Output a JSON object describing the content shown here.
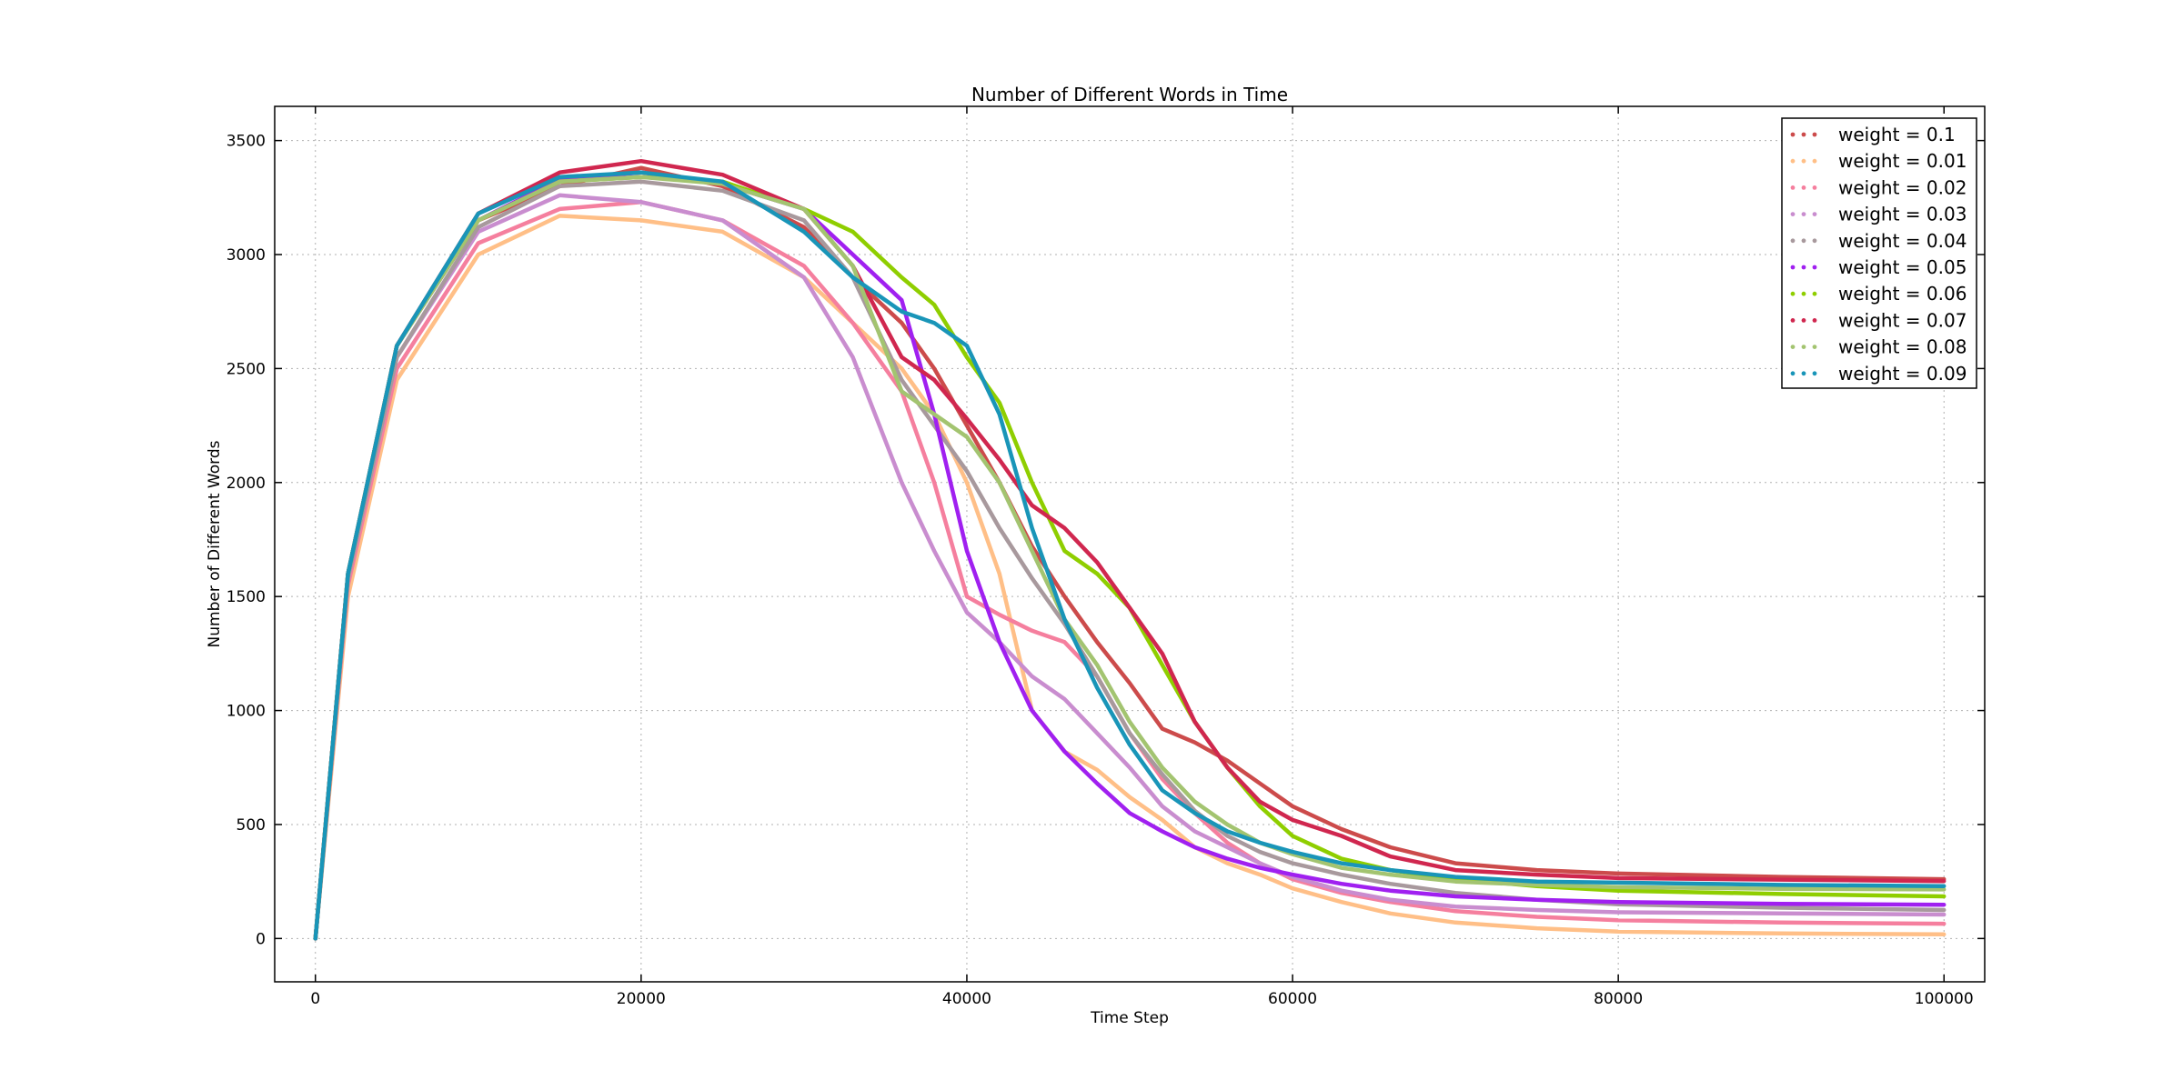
{
  "chart_data": {
    "type": "line",
    "title": "Number of Different Words in Time",
    "xlabel": "Time Step",
    "ylabel": "Number of Different Words",
    "xlim": [
      -2500,
      102500
    ],
    "ylim": [
      -190,
      3650
    ],
    "xticks": [
      0,
      20000,
      40000,
      60000,
      80000,
      100000
    ],
    "yticks": [
      0,
      500,
      1000,
      1500,
      2000,
      2500,
      3000,
      3500
    ],
    "xtick_labels": [
      "0",
      "20000",
      "40000",
      "60000",
      "80000",
      "100000"
    ],
    "ytick_labels": [
      "0",
      "500",
      "1000",
      "1500",
      "2000",
      "2500",
      "3000",
      "3500"
    ],
    "grid": true,
    "legend_position": "top-right",
    "x": [
      0,
      2000,
      5000,
      10000,
      15000,
      20000,
      25000,
      30000,
      33000,
      36000,
      38000,
      40000,
      42000,
      44000,
      46000,
      48000,
      50000,
      52000,
      54000,
      56000,
      58000,
      60000,
      63000,
      66000,
      70000,
      75000,
      80000,
      90000,
      100000
    ],
    "series": [
      {
        "name": "weight = 0.1",
        "color": "#cc4b4b",
        "values": [
          0,
          1600,
          2600,
          3150,
          3300,
          3380,
          3300,
          3120,
          2900,
          2700,
          2500,
          2250,
          2000,
          1720,
          1500,
          1300,
          1120,
          920,
          860,
          780,
          680,
          580,
          480,
          400,
          330,
          300,
          285,
          270,
          260
        ]
      },
      {
        "name": "weight = 0.01",
        "color": "#ffbf87",
        "values": [
          0,
          1500,
          2450,
          3000,
          3170,
          3150,
          3100,
          2900,
          2700,
          2500,
          2300,
          2000,
          1600,
          1000,
          820,
          740,
          620,
          520,
          400,
          330,
          280,
          220,
          160,
          110,
          70,
          45,
          30,
          22,
          18
        ]
      },
      {
        "name": "weight = 0.02",
        "color": "#f57f9e",
        "values": [
          0,
          1550,
          2500,
          3050,
          3200,
          3230,
          3150,
          2950,
          2700,
          2400,
          2000,
          1500,
          1420,
          1350,
          1300,
          1150,
          900,
          700,
          550,
          420,
          330,
          260,
          200,
          160,
          120,
          95,
          80,
          70,
          65
        ]
      },
      {
        "name": "weight = 0.03",
        "color": "#c98dcf",
        "values": [
          0,
          1580,
          2550,
          3100,
          3260,
          3230,
          3150,
          2900,
          2550,
          2000,
          1700,
          1430,
          1300,
          1150,
          1050,
          900,
          750,
          580,
          470,
          400,
          330,
          270,
          210,
          170,
          140,
          125,
          115,
          110,
          105
        ]
      },
      {
        "name": "weight = 0.04",
        "color": "#a8999d",
        "values": [
          0,
          1580,
          2550,
          3120,
          3300,
          3320,
          3280,
          3150,
          2900,
          2450,
          2250,
          2050,
          1800,
          1580,
          1380,
          1150,
          900,
          720,
          560,
          450,
          380,
          330,
          280,
          240,
          200,
          170,
          150,
          135,
          125
        ]
      },
      {
        "name": "weight = 0.05",
        "color": "#a020f0",
        "values": [
          0,
          1600,
          2600,
          3150,
          3330,
          3360,
          3310,
          3200,
          3000,
          2800,
          2300,
          1700,
          1300,
          1000,
          820,
          680,
          550,
          470,
          400,
          350,
          310,
          280,
          240,
          210,
          185,
          170,
          160,
          152,
          148
        ]
      },
      {
        "name": "weight = 0.06",
        "color": "#8fce00",
        "values": [
          0,
          1600,
          2600,
          3150,
          3320,
          3340,
          3320,
          3200,
          3100,
          2900,
          2780,
          2550,
          2350,
          2000,
          1700,
          1600,
          1450,
          1200,
          950,
          750,
          580,
          450,
          350,
          300,
          260,
          230,
          210,
          195,
          185
        ]
      },
      {
        "name": "weight = 0.07",
        "color": "#d0274f",
        "values": [
          0,
          1600,
          2600,
          3180,
          3360,
          3410,
          3350,
          3200,
          2950,
          2550,
          2450,
          2280,
          2100,
          1900,
          1800,
          1650,
          1450,
          1250,
          950,
          750,
          600,
          520,
          450,
          360,
          300,
          280,
          265,
          258,
          252
        ]
      },
      {
        "name": "weight = 0.08",
        "color": "#a3c470",
        "values": [
          0,
          1600,
          2600,
          3150,
          3320,
          3340,
          3310,
          3200,
          2950,
          2400,
          2300,
          2200,
          2000,
          1700,
          1400,
          1200,
          950,
          750,
          600,
          500,
          420,
          370,
          310,
          280,
          250,
          235,
          225,
          218,
          215
        ]
      },
      {
        "name": "weight = 0.09",
        "color": "#1995b8",
        "values": [
          0,
          1600,
          2600,
          3180,
          3340,
          3360,
          3320,
          3100,
          2900,
          2750,
          2700,
          2600,
          2300,
          1800,
          1400,
          1100,
          850,
          650,
          550,
          470,
          420,
          380,
          330,
          300,
          270,
          250,
          245,
          235,
          230
        ]
      }
    ]
  }
}
